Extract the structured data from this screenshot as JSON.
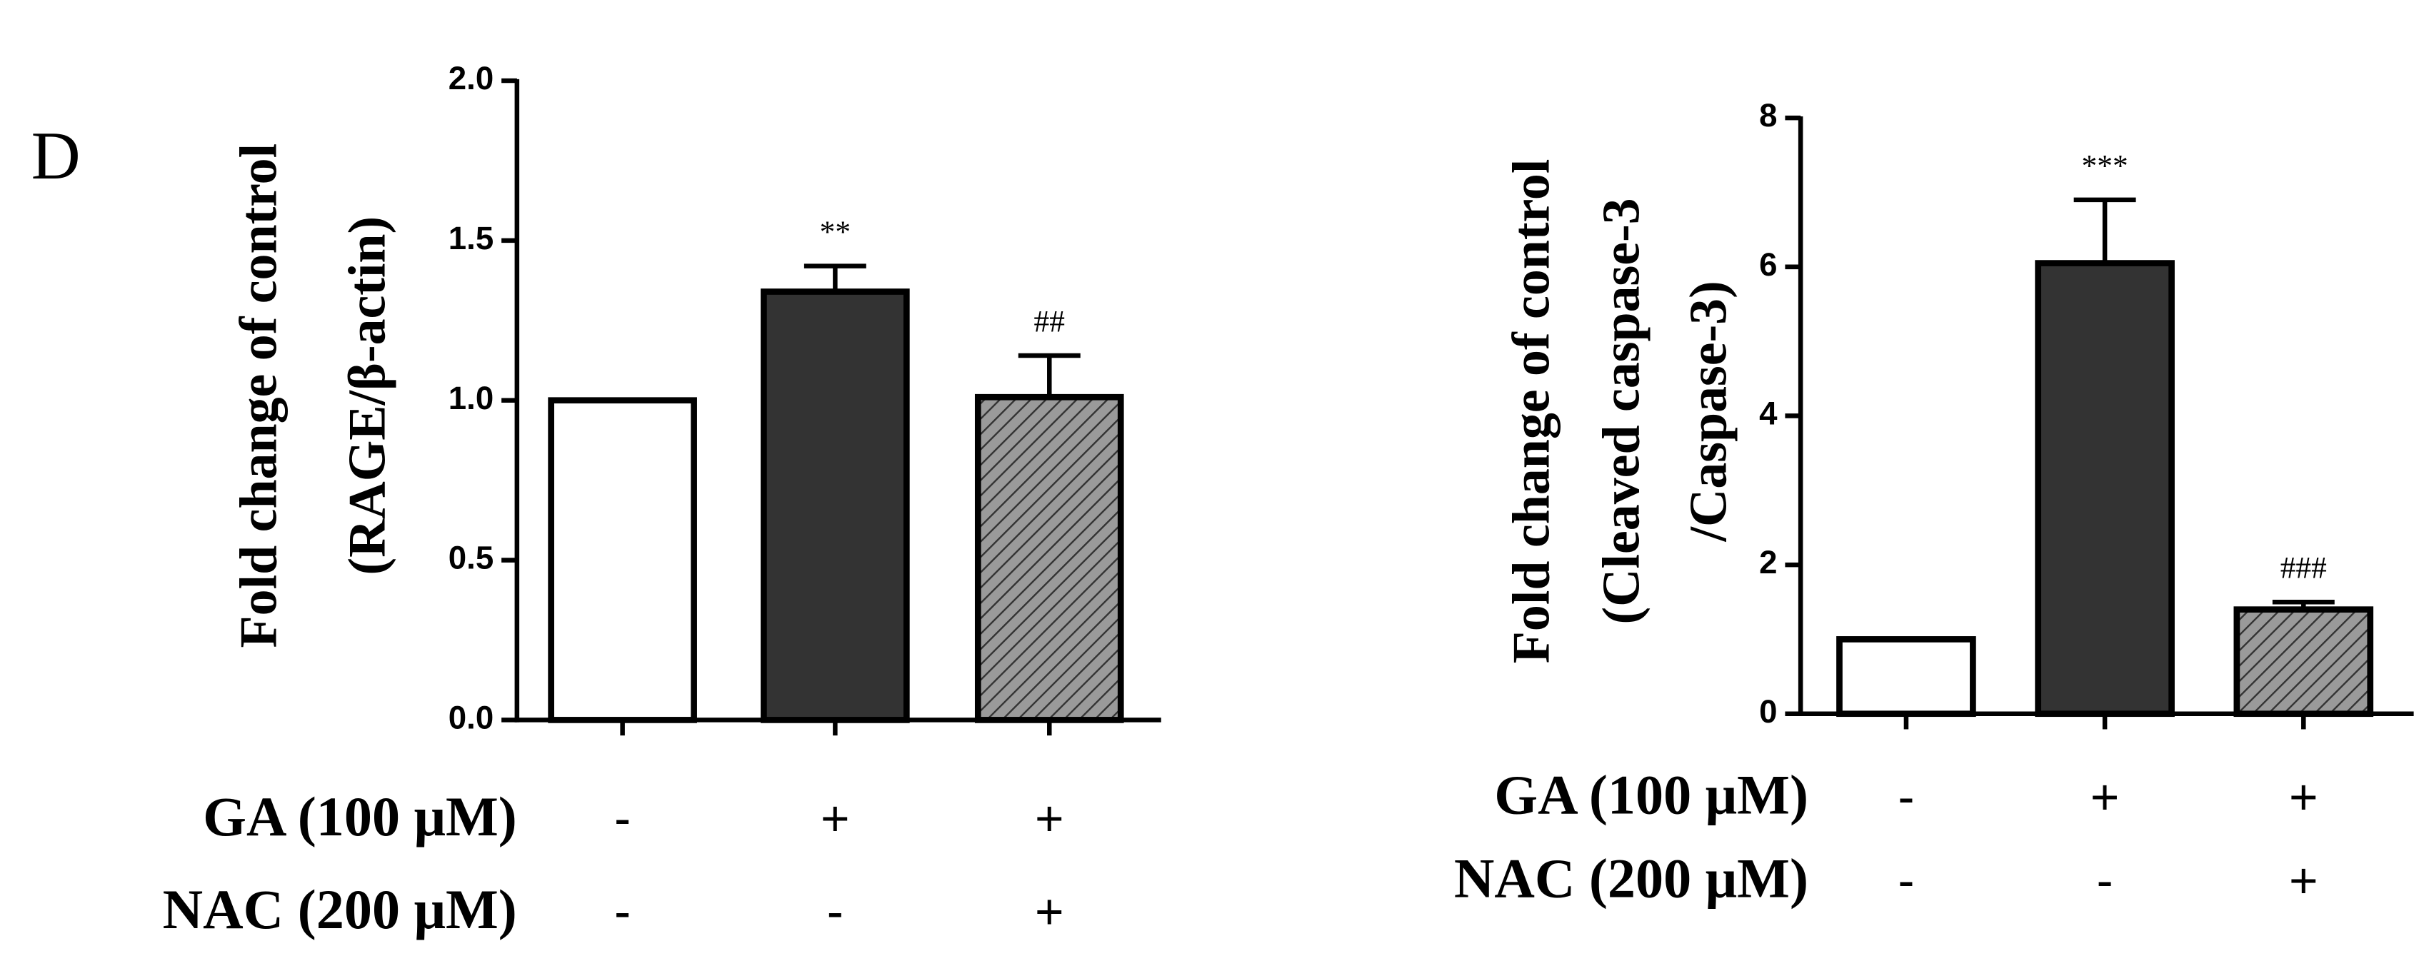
{
  "panel": "D",
  "chart_data": [
    {
      "type": "bar",
      "y_label": [
        "Fold change of control",
        "(RAGE/β-actin)"
      ],
      "values": [
        1.0,
        1.34,
        1.01
      ],
      "errors": [
        0,
        0.08,
        0.13
      ],
      "annotations": [
        null,
        "**",
        "##"
      ],
      "colors": [
        "#ffffff",
        "#333333",
        "#999999"
      ],
      "hatch": [
        false,
        false,
        true
      ],
      "ylim": [
        0,
        2
      ],
      "yticks": [
        {
          "value": 0,
          "label": "0.0"
        },
        {
          "value": 0.5,
          "label": "0.5"
        },
        {
          "value": 1,
          "label": "1.0"
        },
        {
          "value": 1.5,
          "label": "1.5"
        },
        {
          "value": 2,
          "label": "2.0"
        }
      ],
      "conditions": [
        {
          "label": "GA (100 μM)",
          "values": [
            "-",
            "+",
            "+"
          ]
        },
        {
          "label": "NAC (200 μM)",
          "values": [
            "-",
            "-",
            "+"
          ]
        }
      ]
    },
    {
      "type": "bar",
      "y_label": [
        "Fold change of control",
        "(Cleaved caspase-3",
        "/Caspase-3)"
      ],
      "values": [
        1.0,
        6.05,
        1.4
      ],
      "errors": [
        0,
        0.85,
        0.1
      ],
      "annotations": [
        null,
        "***",
        "###"
      ],
      "colors": [
        "#ffffff",
        "#333333",
        "#999999"
      ],
      "hatch": [
        false,
        false,
        true
      ],
      "ylim": [
        0,
        8
      ],
      "yticks": [
        0,
        2,
        4,
        6,
        8
      ],
      "conditions": [
        {
          "label": "GA (100 μM)",
          "values": [
            "-",
            "+",
            "+"
          ]
        },
        {
          "label": "NAC (200 μM)",
          "values": [
            "-",
            "-",
            "+"
          ]
        }
      ]
    }
  ]
}
